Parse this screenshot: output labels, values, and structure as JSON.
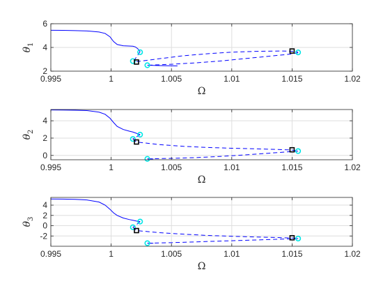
{
  "figure": {
    "background": "#ffffff",
    "curve_color": "#0000ff",
    "hopf_marker_color": "#00e5e5",
    "fold_marker_color": "#000000",
    "grid_color": "#dedede",
    "axis_color": "#262626"
  },
  "chart_data": [
    {
      "type": "line",
      "ylabel_symbol": "θ",
      "ylabel_subscript": "1",
      "xlabel": "Ω",
      "xlim": [
        0.995,
        1.02
      ],
      "ylim": [
        2,
        6
      ],
      "xticks": [
        0.995,
        1,
        1.005,
        1.01,
        1.015,
        1.02
      ],
      "xtick_labels": [
        "0.995",
        "1",
        "1.005",
        "1.01",
        "1.015",
        "1.02"
      ],
      "yticks": [
        2,
        4,
        6
      ],
      "ytick_labels": [
        "2",
        "4",
        "6"
      ],
      "grid": true,
      "series": [
        {
          "style": "solid",
          "x": [
            0.995,
            0.996,
            0.997,
            0.998,
            0.999,
            0.9995,
            0.9999,
            1.0002,
            1.0005,
            1.001,
            1.0015,
            1.0018,
            1.002,
            1.0022,
            1.0024
          ],
          "y": [
            5.45,
            5.44,
            5.42,
            5.39,
            5.3,
            5.18,
            4.9,
            4.5,
            4.25,
            4.14,
            4.12,
            4.1,
            4.05,
            3.9,
            3.65
          ]
        },
        {
          "style": "dashed",
          "x": [
            1.0024,
            1.0021,
            1.0019
          ],
          "y": [
            3.65,
            3.2,
            2.9
          ]
        },
        {
          "style": "dashed",
          "x": [
            1.0021,
            1.004,
            1.006,
            1.008,
            1.01,
            1.012,
            1.014,
            1.015,
            1.0155
          ],
          "y": [
            2.8,
            3.05,
            3.3,
            3.47,
            3.6,
            3.67,
            3.7,
            3.68,
            3.6
          ]
        },
        {
          "style": "dashed",
          "x": [
            1.0155,
            1.015,
            1.013,
            1.011,
            1.009,
            1.007,
            1.005,
            1.0035,
            1.003
          ],
          "y": [
            3.55,
            3.45,
            3.25,
            3.05,
            2.85,
            2.7,
            2.58,
            2.52,
            2.5
          ]
        },
        {
          "style": "solid",
          "x": [
            1.003,
            1.004,
            1.005,
            1.0055
          ],
          "y": [
            2.5,
            2.47,
            2.45,
            2.44
          ]
        }
      ],
      "hopf_points": [
        {
          "x": 1.0024,
          "y": 3.6
        },
        {
          "x": 1.0018,
          "y": 2.85
        },
        {
          "x": 1.003,
          "y": 2.5
        },
        {
          "x": 1.0155,
          "y": 3.58
        }
      ],
      "fold_points": [
        {
          "x": 1.0021,
          "y": 2.77
        },
        {
          "x": 1.015,
          "y": 3.7
        }
      ]
    },
    {
      "type": "line",
      "ylabel_symbol": "θ",
      "ylabel_subscript": "2",
      "xlabel": "Ω",
      "xlim": [
        0.995,
        1.02
      ],
      "ylim": [
        -0.5,
        5.3
      ],
      "xticks": [
        0.995,
        1,
        1.005,
        1.01,
        1.015,
        1.02
      ],
      "xtick_labels": [
        "0.995",
        "1",
        "1.005",
        "1.01",
        "1.015",
        "1.02"
      ],
      "yticks": [
        0,
        2,
        4
      ],
      "ytick_labels": [
        "0",
        "2",
        "4"
      ],
      "grid": true,
      "series": [
        {
          "style": "solid",
          "x": [
            0.995,
            0.996,
            0.997,
            0.998,
            0.999,
            0.9995,
            0.9999,
            1.0002,
            1.0005,
            1.001,
            1.0015,
            1.0018,
            1.002,
            1.0022,
            1.0024
          ],
          "y": [
            5.25,
            5.24,
            5.22,
            5.18,
            5.0,
            4.75,
            4.3,
            3.8,
            3.35,
            3.0,
            2.8,
            2.7,
            2.6,
            2.5,
            2.4
          ]
        },
        {
          "style": "dashed",
          "x": [
            1.0024,
            1.0021,
            1.0018
          ],
          "y": [
            2.4,
            2.15,
            1.9
          ]
        },
        {
          "style": "dashed",
          "x": [
            1.0018,
            1.0021,
            1.004,
            1.006,
            1.008,
            1.01,
            1.012,
            1.014,
            1.015,
            1.0155
          ],
          "y": [
            1.9,
            1.55,
            1.25,
            1.05,
            0.92,
            0.83,
            0.76,
            0.68,
            0.62,
            0.5
          ]
        },
        {
          "style": "dashed",
          "x": [
            1.0155,
            1.015,
            1.013,
            1.011,
            1.009,
            1.007,
            1.005,
            1.0035,
            1.003
          ],
          "y": [
            0.5,
            0.45,
            0.25,
            0.05,
            -0.12,
            -0.25,
            -0.34,
            -0.38,
            -0.4
          ]
        },
        {
          "style": "solid",
          "x": [
            1.003,
            1.0035
          ],
          "y": [
            -0.4,
            -0.41
          ]
        }
      ],
      "hopf_points": [
        {
          "x": 1.0024,
          "y": 2.4
        },
        {
          "x": 1.0018,
          "y": 1.9
        },
        {
          "x": 1.003,
          "y": -0.4
        },
        {
          "x": 1.0155,
          "y": 0.5
        }
      ],
      "fold_points": [
        {
          "x": 1.0021,
          "y": 1.55
        },
        {
          "x": 1.015,
          "y": 0.65
        }
      ]
    },
    {
      "type": "line",
      "ylabel_symbol": "θ",
      "ylabel_subscript": "3",
      "xlabel": "Ω",
      "xlim": [
        0.995,
        1.02
      ],
      "ylim": [
        -4,
        5.5
      ],
      "xticks": [
        0.995,
        1,
        1.005,
        1.01,
        1.015,
        1.02
      ],
      "xtick_labels": [
        "0.995",
        "1",
        "1.005",
        "1.01",
        "1.015",
        "1.02"
      ],
      "yticks": [
        -2,
        0,
        2,
        4
      ],
      "ytick_labels": [
        "-2",
        "0",
        "2",
        "4"
      ],
      "grid": true,
      "series": [
        {
          "style": "solid",
          "x": [
            0.995,
            0.996,
            0.997,
            0.998,
            0.999,
            0.9995,
            0.9999,
            1.0002,
            1.0005,
            1.001,
            1.0015,
            1.0018,
            1.002,
            1.0022,
            1.0024
          ],
          "y": [
            5.2,
            5.18,
            5.12,
            5.0,
            4.6,
            4.0,
            3.2,
            2.5,
            2.0,
            1.5,
            1.2,
            1.05,
            0.95,
            0.85,
            0.8
          ]
        },
        {
          "style": "dashed",
          "x": [
            1.0024,
            1.0021,
            1.0018
          ],
          "y": [
            0.8,
            0.2,
            -0.3
          ]
        },
        {
          "style": "dashed",
          "x": [
            1.0018,
            1.0021,
            1.004,
            1.006,
            1.008,
            1.01,
            1.012,
            1.014,
            1.015,
            1.0155
          ],
          "y": [
            -0.3,
            -0.95,
            -1.35,
            -1.65,
            -1.9,
            -2.05,
            -2.2,
            -2.32,
            -2.4,
            -2.5
          ]
        },
        {
          "style": "dashed",
          "x": [
            1.0155,
            1.015,
            1.013,
            1.011,
            1.009,
            1.007,
            1.005,
            1.0035,
            1.003
          ],
          "y": [
            -2.5,
            -2.55,
            -2.7,
            -2.85,
            -3.0,
            -3.15,
            -3.3,
            -3.38,
            -3.4
          ]
        },
        {
          "style": "solid",
          "x": [
            1.003,
            1.0035
          ],
          "y": [
            -3.4,
            -3.42
          ]
        }
      ],
      "hopf_points": [
        {
          "x": 1.0024,
          "y": 0.8
        },
        {
          "x": 1.0018,
          "y": -0.3
        },
        {
          "x": 1.003,
          "y": -3.4
        },
        {
          "x": 1.0155,
          "y": -2.5
        }
      ],
      "fold_points": [
        {
          "x": 1.0021,
          "y": -0.95
        },
        {
          "x": 1.015,
          "y": -2.35
        }
      ]
    }
  ]
}
